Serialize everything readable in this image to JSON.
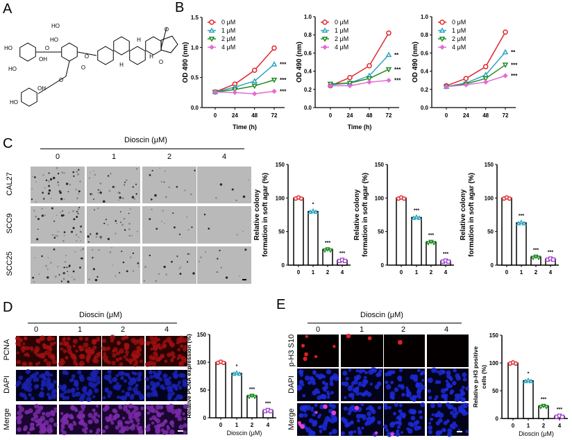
{
  "panels": {
    "A": "A",
    "B": "B",
    "C": "C",
    "D": "D",
    "E": "E"
  },
  "structure_lettering": [
    "HO",
    "OH",
    "HO",
    "O",
    "HO",
    "O",
    "O",
    "H",
    "H",
    "H",
    "O",
    "O",
    "HO",
    "OH",
    "O",
    "HO"
  ],
  "C": {
    "treatment_label": "Dioscin (μM)",
    "doses": [
      "0",
      "1",
      "2",
      "4"
    ],
    "rows": [
      "CAL27",
      "SCC9",
      "SCC25"
    ]
  },
  "D": {
    "treatment_label": "Dioscin (μM)",
    "doses": [
      "0",
      "1",
      "2",
      "4"
    ],
    "rows": [
      "PCNA",
      "DAPI",
      "Merge"
    ]
  },
  "E": {
    "treatment_label": "Dioscin (μM)",
    "doses": [
      "0",
      "1",
      "2",
      "4"
    ],
    "rows": [
      "p-H3 S10",
      "DAPI",
      "Merge"
    ]
  },
  "colors": {
    "0uM": "#e0262b",
    "1uM": "#2ea3bf",
    "2uM": "#1e8a22",
    "4uM_line": "#e46bd6",
    "4uM_bar": "#a23fd0"
  },
  "chart_data": [
    {
      "type": "line",
      "panel": "B",
      "x": [
        0,
        24,
        48,
        72
      ],
      "xlabel": "Time (h)",
      "ylabel": "OD 490 (nm)",
      "ylim": [
        0,
        1.5
      ],
      "yticks": [
        "0.0",
        "0.5",
        "1.0",
        "1.5"
      ],
      "xticks": [
        "0",
        "24",
        "48",
        "72"
      ],
      "legend": "top-left",
      "series": [
        {
          "name": "0 μM",
          "values": [
            0.26,
            0.39,
            0.62,
            0.99
          ],
          "marker": "circle"
        },
        {
          "name": "1 μM",
          "values": [
            0.26,
            0.34,
            0.44,
            0.72
          ],
          "marker": "triangle-up"
        },
        {
          "name": "2 μM",
          "values": [
            0.26,
            0.3,
            0.36,
            0.46
          ],
          "marker": "triangle-down"
        },
        {
          "name": "4 μM",
          "values": [
            0.26,
            0.25,
            0.23,
            0.27
          ],
          "marker": "diamond"
        }
      ],
      "significance": [
        "",
        "***",
        "***",
        "***"
      ]
    },
    {
      "type": "line",
      "panel": "B",
      "x": [
        0,
        24,
        48,
        72
      ],
      "xlabel": "Time (h)",
      "ylabel": "OD 490 (nm)",
      "ylim": [
        0,
        1.0
      ],
      "yticks": [
        "0.0",
        "0.2",
        "0.4",
        "0.6",
        "0.8",
        "1.0"
      ],
      "xticks": [
        "0",
        "24",
        "48",
        "72"
      ],
      "legend": "top-left",
      "series": [
        {
          "name": "0 μM",
          "values": [
            0.24,
            0.33,
            0.46,
            0.82
          ],
          "marker": "circle"
        },
        {
          "name": "1 μM",
          "values": [
            0.25,
            0.27,
            0.35,
            0.58
          ],
          "marker": "triangle-up"
        },
        {
          "name": "2 μM",
          "values": [
            0.26,
            0.27,
            0.32,
            0.42
          ],
          "marker": "triangle-down"
        },
        {
          "name": "4 μM",
          "values": [
            0.24,
            0.24,
            0.28,
            0.3
          ],
          "marker": "diamond"
        }
      ],
      "significance": [
        "",
        "**",
        "***",
        "***"
      ]
    },
    {
      "type": "line",
      "panel": "B",
      "x": [
        0,
        24,
        48,
        72
      ],
      "xlabel": "",
      "ylabel": "OD 490 (nm)",
      "ylim": [
        0,
        1.0
      ],
      "yticks": [
        "0.0",
        "0.2",
        "0.4",
        "0.6",
        "0.8",
        "1.0"
      ],
      "xticks": [
        "0",
        "24",
        "48",
        "72"
      ],
      "legend": "top-left",
      "series": [
        {
          "name": "0 μM",
          "values": [
            0.24,
            0.32,
            0.45,
            0.83
          ],
          "marker": "circle"
        },
        {
          "name": "1 μM",
          "values": [
            0.23,
            0.27,
            0.36,
            0.61
          ],
          "marker": "triangle-up"
        },
        {
          "name": "2 μM",
          "values": [
            0.23,
            0.26,
            0.32,
            0.47
          ],
          "marker": "triangle-down"
        },
        {
          "name": "4 μM",
          "values": [
            0.23,
            0.25,
            0.28,
            0.35
          ],
          "marker": "diamond"
        }
      ],
      "significance": [
        "",
        "**",
        "***",
        "***"
      ]
    },
    {
      "type": "bar",
      "panel": "C",
      "categories": [
        "0",
        "1",
        "2",
        "4"
      ],
      "values": [
        100,
        80,
        23,
        7
      ],
      "significance": [
        "",
        "*",
        "***",
        "***"
      ],
      "ylabel": [
        "Relative colony",
        "formation in soft agar (%)"
      ],
      "xlabel": "",
      "ylim": [
        0,
        150
      ],
      "yticks": [
        "0",
        "50",
        "100",
        "150"
      ]
    },
    {
      "type": "bar",
      "panel": "C",
      "categories": [
        "0",
        "1",
        "2",
        "4"
      ],
      "values": [
        100,
        71,
        34,
        6
      ],
      "significance": [
        "",
        "***",
        "***",
        "***"
      ],
      "ylabel": [
        "Relative colony",
        "formation in soft agar (%)"
      ],
      "xlabel": "",
      "ylim": [
        0,
        150
      ],
      "yticks": [
        "0",
        "50",
        "100",
        "150"
      ]
    },
    {
      "type": "bar",
      "panel": "C",
      "categories": [
        "0",
        "1",
        "2",
        "4"
      ],
      "values": [
        100,
        63,
        12,
        9
      ],
      "significance": [
        "",
        "***",
        "***",
        "***"
      ],
      "ylabel": [
        "Relative colony",
        "formation in soft agar (%)"
      ],
      "xlabel": "",
      "ylim": [
        0,
        150
      ],
      "yticks": [
        "0",
        "50",
        "100",
        "150"
      ]
    },
    {
      "type": "bar",
      "panel": "D",
      "categories": [
        "0",
        "1",
        "2",
        "4"
      ],
      "values": [
        100,
        80,
        39,
        13
      ],
      "significance": [
        "",
        "*",
        "***",
        "***"
      ],
      "ylabel": [
        "Relative PCNA expression (%)"
      ],
      "xlabel": "Dioscin (μM)",
      "ylim": [
        0,
        150
      ],
      "yticks": [
        "0",
        "50",
        "100",
        "150"
      ]
    },
    {
      "type": "bar",
      "panel": "E",
      "categories": [
        "0",
        "1",
        "2",
        "4"
      ],
      "values": [
        100,
        68,
        22,
        4
      ],
      "significance": [
        "",
        "*",
        "***",
        "***"
      ],
      "ylabel": [
        "Relative p-H3 positive",
        "cells (%)"
      ],
      "xlabel": "Dioscin (μM)",
      "ylim": [
        0,
        150
      ],
      "yticks": [
        "0",
        "50",
        "100",
        "150"
      ]
    }
  ]
}
